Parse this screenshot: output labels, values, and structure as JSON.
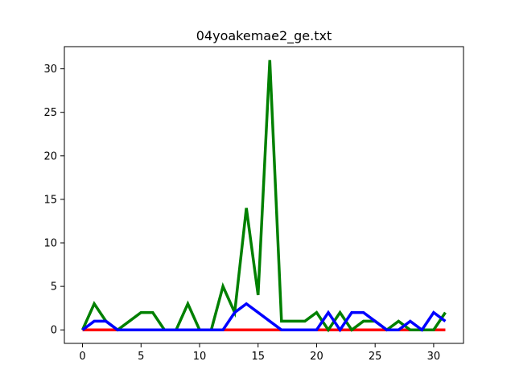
{
  "chart_data": {
    "type": "line",
    "title": "04yoakemae2_ge.txt",
    "xlabel": "",
    "ylabel": "",
    "xlim": [
      -1.55,
      32.55
    ],
    "ylim": [
      -1.55,
      32.55
    ],
    "xticks": [
      0,
      5,
      10,
      15,
      20,
      25,
      30
    ],
    "yticks": [
      0,
      5,
      10,
      15,
      20,
      25,
      30
    ],
    "grid": false,
    "x": [
      0,
      1,
      2,
      3,
      4,
      5,
      6,
      7,
      8,
      9,
      10,
      11,
      12,
      13,
      14,
      15,
      16,
      17,
      18,
      19,
      20,
      21,
      22,
      23,
      24,
      25,
      26,
      27,
      28,
      29,
      30,
      31
    ],
    "series": [
      {
        "color": "#ff0000",
        "values": [
          0,
          0,
          0,
          0,
          0,
          0,
          0,
          0,
          0,
          0,
          0,
          0,
          0,
          0,
          0,
          0,
          0,
          0,
          0,
          0,
          0,
          0,
          0,
          0,
          0,
          0,
          0,
          0,
          0,
          0,
          0,
          0
        ]
      },
      {
        "color": "#008000",
        "values": [
          0,
          3,
          1,
          0,
          1,
          2,
          2,
          0,
          0,
          3,
          0,
          0,
          5,
          2,
          14,
          4,
          31,
          1,
          1,
          1,
          2,
          0,
          2,
          0,
          1,
          1,
          0,
          1,
          0,
          0,
          0,
          2
        ]
      },
      {
        "color": "#0000ff",
        "values": [
          0,
          1,
          1,
          0,
          0,
          0,
          0,
          0,
          0,
          0,
          0,
          0,
          0,
          2,
          3,
          2,
          1,
          0,
          0,
          0,
          0,
          2,
          0,
          2,
          2,
          1,
          0,
          0,
          1,
          0,
          2,
          1
        ]
      }
    ]
  }
}
